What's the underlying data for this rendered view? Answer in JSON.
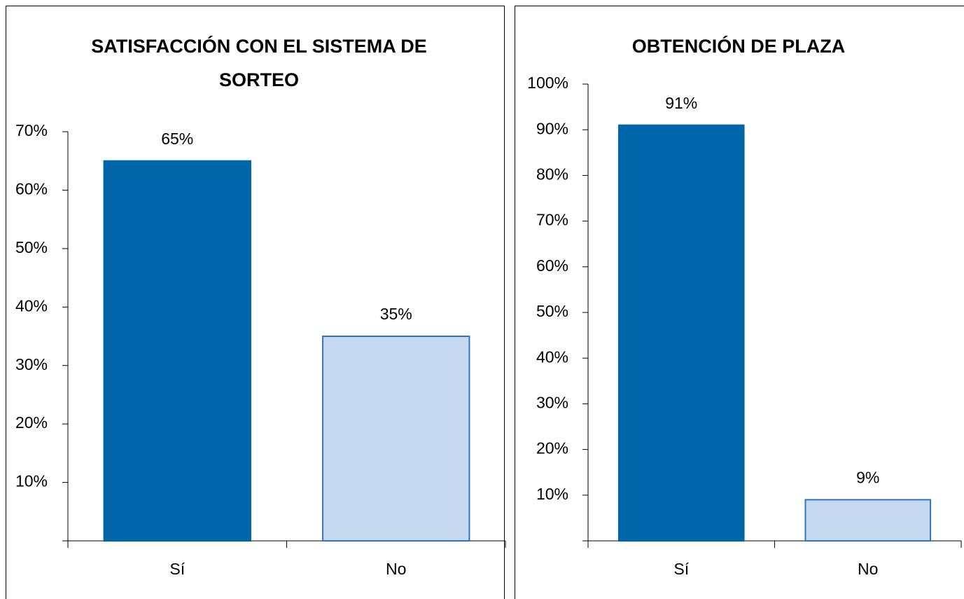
{
  "chart_data": [
    {
      "type": "bar",
      "title": "SATISFACCIÓN CON EL SISTEMA DE SORTEO",
      "categories": [
        "Sí",
        "No"
      ],
      "values": [
        65,
        35
      ],
      "value_labels": [
        "65%",
        "35%"
      ],
      "colors": [
        "#0066aa",
        "#c6d9f0"
      ],
      "edge_colors": [
        "#0066aa",
        "#2e75c6"
      ],
      "ylim": [
        0,
        70
      ],
      "yticks": [
        {
          "value": 10,
          "label": "10%"
        },
        {
          "value": 20,
          "label": "20%"
        },
        {
          "value": 30,
          "label": "30%"
        },
        {
          "value": 40,
          "label": "40%"
        },
        {
          "value": 50,
          "label": "50%"
        },
        {
          "value": 60,
          "label": "60%"
        },
        {
          "value": 70,
          "label": "70%"
        }
      ]
    },
    {
      "type": "bar",
      "title": "OBTENCIÓN DE PLAZA",
      "categories": [
        "Sí",
        "No"
      ],
      "values": [
        91,
        9
      ],
      "value_labels": [
        "91%",
        "9%"
      ],
      "colors": [
        "#0066aa",
        "#c6d9f0"
      ],
      "edge_colors": [
        "#0066aa",
        "#2e75c6"
      ],
      "ylim": [
        0,
        100
      ],
      "yticks": [
        {
          "value": 10,
          "label": "10%"
        },
        {
          "value": 20,
          "label": "20%"
        },
        {
          "value": 30,
          "label": "30%"
        },
        {
          "value": 40,
          "label": "40%"
        },
        {
          "value": 50,
          "label": "50%"
        },
        {
          "value": 60,
          "label": "60%"
        },
        {
          "value": 70,
          "label": "70%"
        },
        {
          "value": 80,
          "label": "80%"
        },
        {
          "value": 90,
          "label": "90%"
        },
        {
          "value": 100,
          "label": "100%"
        }
      ]
    }
  ]
}
